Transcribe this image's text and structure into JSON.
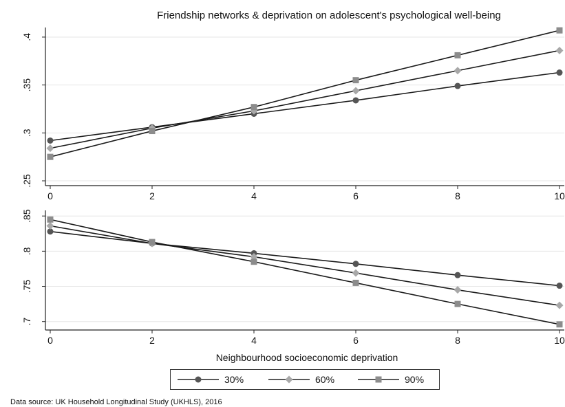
{
  "chart_data": {
    "title": "Friendship networks & deprivation on adolescent's psychological well-being",
    "xlabel": "Neighbourhood socioeconomic deprivation",
    "x": [
      0,
      2,
      4,
      6,
      8,
      10
    ],
    "x_ticks": [
      "0",
      "2",
      "4",
      "6",
      "8",
      "10"
    ],
    "legend": {
      "placement": "bottom",
      "entries": [
        "30%",
        "60%",
        "90%"
      ]
    },
    "source": "Data source: UK Household Longitudinal Study (UKHLS), 2016",
    "panels": [
      {
        "type": "line",
        "ylim": [
          0.245,
          0.41
        ],
        "y_ticks": [
          {
            "value": 0.25,
            "label": ".25"
          },
          {
            "value": 0.3,
            "label": ".3"
          },
          {
            "value": 0.35,
            "label": ".35"
          },
          {
            "value": 0.4,
            "label": ".4"
          }
        ],
        "grid": true,
        "series": [
          {
            "name": "30%",
            "marker": "circle",
            "color": "#555555",
            "values": [
              0.292,
              0.306,
              0.32,
              0.334,
              0.349,
              0.363
            ]
          },
          {
            "name": "60%",
            "marker": "diamond",
            "color": "#a8a8a8",
            "values": [
              0.284,
              0.305,
              0.323,
              0.344,
              0.365,
              0.386
            ]
          },
          {
            "name": "90%",
            "marker": "square",
            "color": "#8c8c8c",
            "values": [
              0.275,
              0.302,
              0.327,
              0.355,
              0.381,
              0.407
            ]
          }
        ]
      },
      {
        "type": "line",
        "ylim": [
          0.688,
          0.858
        ],
        "y_ticks": [
          {
            "value": 0.7,
            "label": ".7"
          },
          {
            "value": 0.75,
            "label": ".75"
          },
          {
            "value": 0.8,
            "label": ".8"
          },
          {
            "value": 0.85,
            "label": ".85"
          }
        ],
        "grid": true,
        "series": [
          {
            "name": "30%",
            "marker": "circle",
            "color": "#555555",
            "values": [
              0.828,
              0.811,
              0.797,
              0.782,
              0.766,
              0.751
            ]
          },
          {
            "name": "60%",
            "marker": "diamond",
            "color": "#a8a8a8",
            "values": [
              0.836,
              0.811,
              0.792,
              0.769,
              0.745,
              0.723
            ]
          },
          {
            "name": "90%",
            "marker": "square",
            "color": "#8c8c8c",
            "values": [
              0.845,
              0.813,
              0.785,
              0.755,
              0.725,
              0.696
            ]
          }
        ]
      }
    ]
  }
}
